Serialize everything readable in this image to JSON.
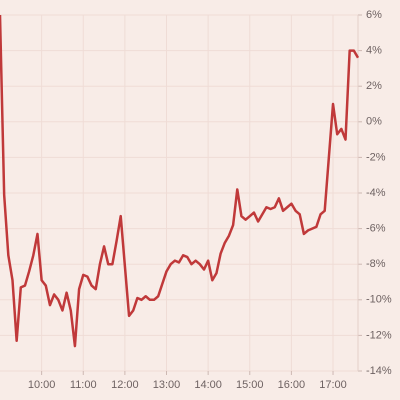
{
  "chart_data": {
    "type": "line",
    "x": [
      9.0,
      9.1,
      9.2,
      9.3,
      9.4,
      9.5,
      9.6,
      9.7,
      9.8,
      9.9,
      10.0,
      10.1,
      10.2,
      10.3,
      10.4,
      10.5,
      10.6,
      10.7,
      10.8,
      10.9,
      11.0,
      11.1,
      11.2,
      11.3,
      11.4,
      11.5,
      11.6,
      11.7,
      11.8,
      11.9,
      12.0,
      12.1,
      12.2,
      12.3,
      12.4,
      12.5,
      12.6,
      12.7,
      12.8,
      12.9,
      13.0,
      13.1,
      13.2,
      13.3,
      13.4,
      13.5,
      13.6,
      13.7,
      13.8,
      13.9,
      14.0,
      14.1,
      14.2,
      14.3,
      14.4,
      14.5,
      14.6,
      14.7,
      14.8,
      14.9,
      15.0,
      15.1,
      15.2,
      15.3,
      15.4,
      15.5,
      15.6,
      15.7,
      15.8,
      15.9,
      16.0,
      16.1,
      16.2,
      16.3,
      16.4,
      16.5,
      16.6,
      16.7,
      16.8,
      16.9,
      17.0,
      17.1,
      17.2,
      17.3,
      17.4,
      17.5,
      17.6
    ],
    "values": [
      6.0,
      -4.1,
      -7.5,
      -8.9,
      -12.3,
      -9.3,
      -9.2,
      -8.4,
      -7.5,
      -6.3,
      -8.9,
      -9.2,
      -10.3,
      -9.7,
      -10.0,
      -10.6,
      -9.6,
      -10.6,
      -12.6,
      -9.4,
      -8.6,
      -8.7,
      -9.2,
      -9.4,
      -8.0,
      -7.0,
      -8.0,
      -8.0,
      -6.7,
      -5.3,
      -8.1,
      -10.9,
      -10.6,
      -9.9,
      -10.0,
      -9.8,
      -10.0,
      -10.0,
      -9.8,
      -9.1,
      -8.4,
      -8.0,
      -7.8,
      -7.9,
      -7.5,
      -7.6,
      -8.0,
      -7.8,
      -8.0,
      -8.3,
      -7.8,
      -8.9,
      -8.5,
      -7.4,
      -6.8,
      -6.4,
      -5.8,
      -3.8,
      -5.3,
      -5.5,
      -5.3,
      -5.1,
      -5.6,
      -5.2,
      -4.8,
      -4.9,
      -4.8,
      -4.3,
      -5.0,
      -4.8,
      -4.6,
      -5.0,
      -5.2,
      -6.3,
      -6.1,
      -6.0,
      -5.9,
      -5.2,
      -5.0,
      -2.0,
      1.0,
      -0.7,
      -0.4,
      -1.0,
      4.0,
      4.0,
      3.6
    ],
    "color": "#c0393a",
    "xlim": [
      9.0,
      17.6
    ],
    "xticks": [
      {
        "value": 10,
        "label": "10:00"
      },
      {
        "value": 11,
        "label": "11:00"
      },
      {
        "value": 12,
        "label": "12:00"
      },
      {
        "value": 13,
        "label": "13:00"
      },
      {
        "value": 14,
        "label": "14:00"
      },
      {
        "value": 15,
        "label": "15:00"
      },
      {
        "value": 16,
        "label": "16:00"
      },
      {
        "value": 17,
        "label": "17:00"
      }
    ],
    "ylim": [
      -14,
      6
    ],
    "yticks": [
      {
        "value": 6,
        "label": "6%"
      },
      {
        "value": 4,
        "label": "4%"
      },
      {
        "value": 2,
        "label": "2%"
      },
      {
        "value": 0,
        "label": "0%"
      },
      {
        "value": -2,
        "label": "-2%"
      },
      {
        "value": -4,
        "label": "-4%"
      },
      {
        "value": -6,
        "label": "-6%"
      },
      {
        "value": -8,
        "label": "-8%"
      },
      {
        "value": -10,
        "label": "-10%"
      },
      {
        "value": -12,
        "label": "-12%"
      },
      {
        "value": -14,
        "label": "-14%"
      }
    ],
    "grid": true
  }
}
